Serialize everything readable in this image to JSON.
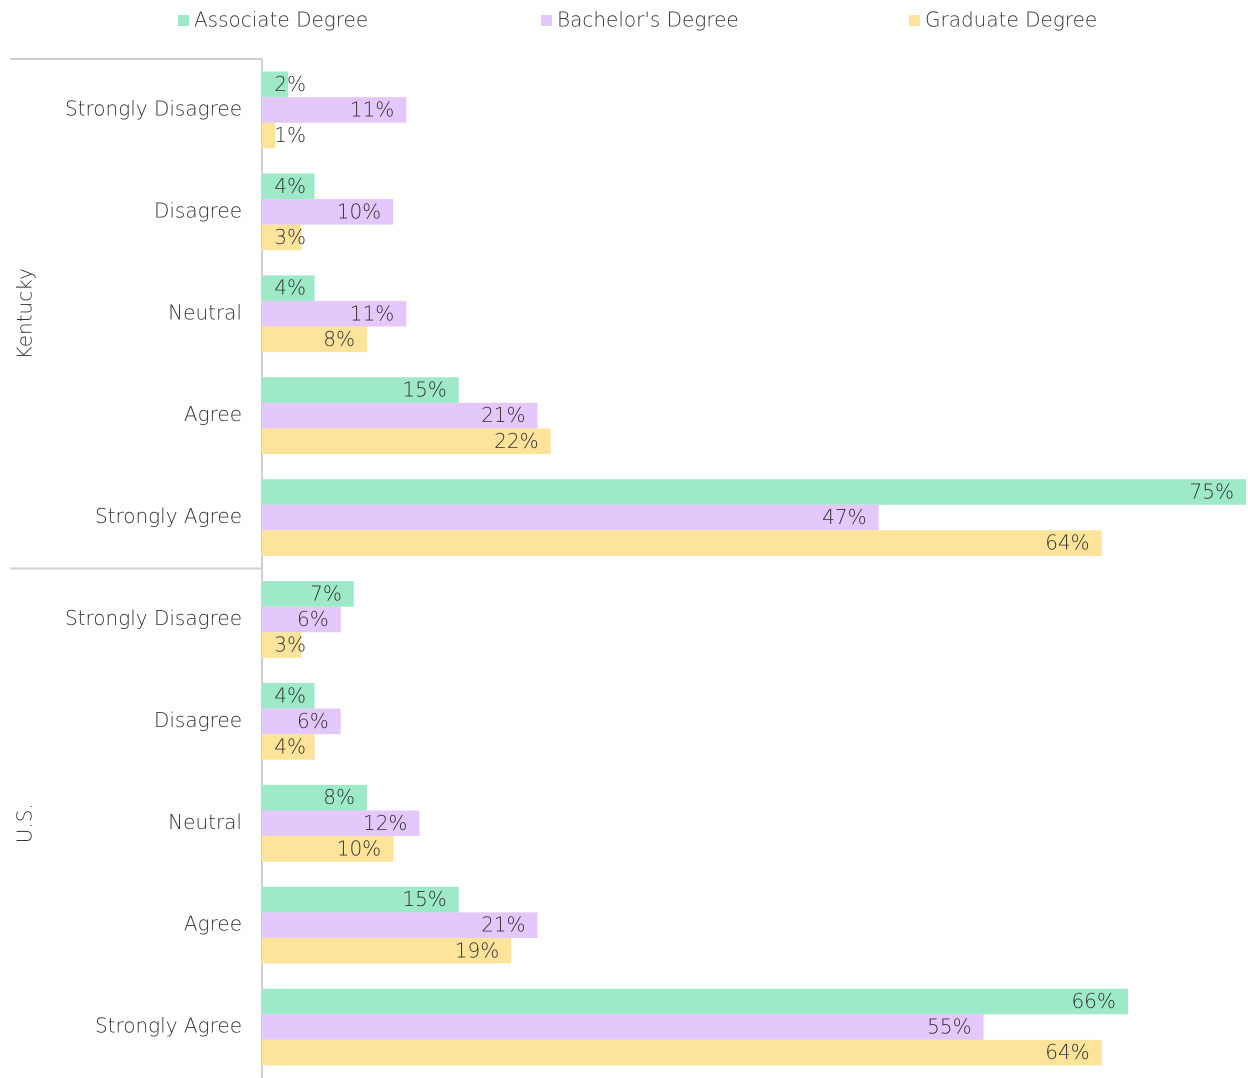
{
  "chart_data": {
    "type": "bar",
    "orientation": "horizontal",
    "legend": "top",
    "groups": [
      {
        "name": "Kentucky",
        "categories": [
          "Strongly Disagree",
          "Disagree",
          "Neutral",
          "Agree",
          "Strongly Agree"
        ]
      },
      {
        "name": "U.S.",
        "categories": [
          "Strongly Disagree",
          "Disagree",
          "Neutral",
          "Agree",
          "Strongly Agree"
        ]
      }
    ],
    "series": [
      {
        "name": "Associate Degree",
        "color": "#9eeac8",
        "values": [
          2,
          4,
          4,
          15,
          75,
          7,
          4,
          8,
          15,
          66
        ],
        "value_labels": [
          "2%",
          "4%",
          "4%",
          "15%",
          "75%",
          "7%",
          "4%",
          "8%",
          "15%",
          "66%"
        ]
      },
      {
        "name": "Bachelor's Degree",
        "color": "#e4c8fb",
        "values": [
          11,
          10,
          11,
          21,
          47,
          6,
          6,
          12,
          21,
          55
        ],
        "value_labels": [
          "11%",
          "10%",
          "11%",
          "21%",
          "47%",
          "6%",
          "6%",
          "12%",
          "21%",
          "55%"
        ]
      },
      {
        "name": "Graduate Degree",
        "color": "#fde49a",
        "values": [
          1,
          3,
          8,
          22,
          64,
          3,
          4,
          10,
          19,
          64
        ],
        "value_labels": [
          "1%",
          "3%",
          "8%",
          "22%",
          "64%",
          "3%",
          "4%",
          "10%",
          "19%",
          "64%"
        ]
      }
    ]
  }
}
